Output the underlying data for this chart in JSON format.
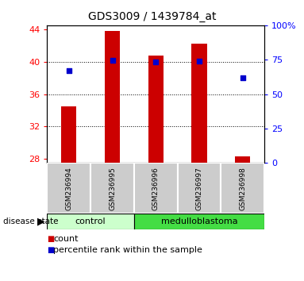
{
  "title": "GDS3009 / 1439784_at",
  "samples": [
    "GSM236994",
    "GSM236995",
    "GSM236996",
    "GSM236997",
    "GSM236998"
  ],
  "count_values": [
    34.5,
    43.8,
    40.8,
    42.2,
    28.3
  ],
  "percentile_values": [
    67.0,
    74.5,
    73.5,
    74.0,
    62.0
  ],
  "ylim_left": [
    27.5,
    44.5
  ],
  "ylim_right": [
    0,
    100
  ],
  "yticks_left": [
    28,
    32,
    36,
    40,
    44
  ],
  "yticks_right": [
    0,
    25,
    50,
    75,
    100
  ],
  "ytick_labels_right": [
    "0",
    "25",
    "50",
    "75",
    "100%"
  ],
  "bar_bottom": 27.5,
  "bar_color": "#cc0000",
  "dot_color": "#0000cc",
  "grid_color": "black",
  "grid_linestyle": "dotted",
  "grid_yticks": [
    32,
    36,
    40
  ],
  "disease_groups": [
    {
      "label": "control",
      "n_samples": 2,
      "color": "#ccffcc"
    },
    {
      "label": "medulloblastoma",
      "n_samples": 3,
      "color": "#44dd44"
    }
  ],
  "disease_label": "disease state",
  "legend_count_label": "count",
  "legend_pct_label": "percentile rank within the sample",
  "bar_width": 0.35,
  "background_color": "#ffffff",
  "plot_area_color": "#ffffff",
  "sample_box_color": "#cccccc"
}
